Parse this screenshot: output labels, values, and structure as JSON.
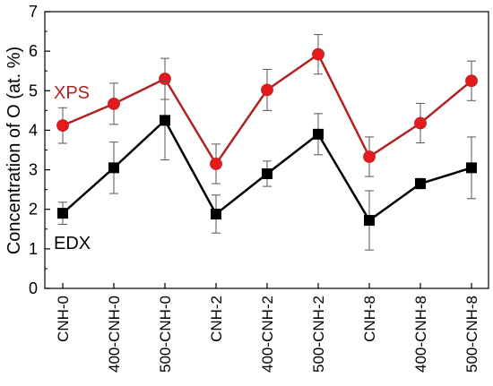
{
  "chart_data": {
    "type": "line",
    "ylabel": "Concentration of O (at. %)",
    "xlabel": "",
    "ylim": [
      0,
      7
    ],
    "yticks": [
      0,
      1,
      2,
      3,
      4,
      5,
      6,
      7
    ],
    "categories": [
      "CNH-0",
      "400-CNH-0",
      "500-CNH-0",
      "CNH-2",
      "400-CNH-2",
      "500-CNH-2",
      "CNH-8",
      "400-CNH-8",
      "500-CNH-8"
    ],
    "series": [
      {
        "name": "XPS",
        "color": "#b22222",
        "marker": "circle",
        "marker_color": "#e41a1c",
        "values": [
          4.12,
          4.67,
          5.3,
          3.15,
          5.02,
          5.92,
          3.33,
          4.18,
          5.25
        ],
        "errors": [
          0.45,
          0.52,
          0.52,
          0.5,
          0.52,
          0.5,
          0.5,
          0.5,
          0.5
        ]
      },
      {
        "name": "EDX",
        "color": "#000000",
        "marker": "square",
        "marker_color": "#000000",
        "values": [
          1.9,
          3.05,
          4.25,
          1.88,
          2.9,
          3.9,
          1.72,
          2.65,
          3.05
        ],
        "errors": [
          0.28,
          0.65,
          1.0,
          0.48,
          0.32,
          0.52,
          0.75,
          0.13,
          0.78
        ]
      }
    ],
    "grid": false,
    "legend": "inline labels"
  }
}
